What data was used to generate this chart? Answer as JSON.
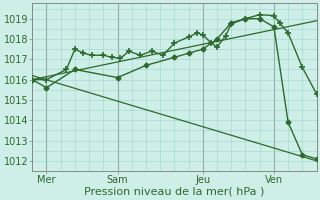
{
  "xlabel": "Pression niveau de la mer( hPa )",
  "background_color": "#ceeee8",
  "grid_color": "#9dd4cc",
  "line_color": "#2d6a2d",
  "ylim": [
    1011.5,
    1019.75
  ],
  "xlim": [
    0.0,
    10.0
  ],
  "xtick_positions": [
    0.5,
    3.0,
    6.0,
    8.5
  ],
  "xtick_labels": [
    "Mer",
    "Sam",
    "Jeu",
    "Ven"
  ],
  "vline_positions": [
    0.5,
    3.0,
    6.0,
    8.5
  ],
  "ytick_positions": [
    1012,
    1013,
    1014,
    1015,
    1016,
    1017,
    1018,
    1019
  ],
  "series1_x": [
    0.0,
    0.5,
    1.2,
    1.5,
    1.8,
    2.1,
    2.5,
    2.8,
    3.1,
    3.4,
    3.8,
    4.2,
    4.6,
    5.0,
    5.5,
    5.8,
    6.0,
    6.3,
    6.5,
    6.8,
    7.0,
    7.5,
    8.0,
    8.5,
    8.7,
    9.0,
    9.5,
    10.0
  ],
  "series1_y": [
    1016.0,
    1016.0,
    1016.5,
    1017.5,
    1017.3,
    1017.2,
    1017.2,
    1017.1,
    1017.05,
    1017.4,
    1017.2,
    1017.4,
    1017.2,
    1017.8,
    1018.1,
    1018.3,
    1018.2,
    1017.8,
    1017.6,
    1018.15,
    1018.75,
    1019.0,
    1019.2,
    1019.15,
    1018.8,
    1018.3,
    1016.6,
    1015.3
  ],
  "series2_x": [
    0.0,
    0.5,
    1.5,
    3.0,
    4.0,
    5.0,
    5.5,
    6.0,
    6.5,
    7.0,
    7.5,
    8.0,
    8.5,
    9.0,
    9.5,
    10.0
  ],
  "series2_y": [
    1016.0,
    1015.6,
    1016.5,
    1016.1,
    1016.7,
    1017.1,
    1017.3,
    1017.5,
    1018.0,
    1018.8,
    1019.0,
    1019.0,
    1018.6,
    1013.9,
    1012.3,
    1012.1
  ],
  "trend1_x": [
    0.0,
    10.0
  ],
  "trend1_y": [
    1016.0,
    1018.9
  ],
  "trend2_x": [
    0.0,
    10.0
  ],
  "trend2_y": [
    1016.2,
    1012.0
  ]
}
